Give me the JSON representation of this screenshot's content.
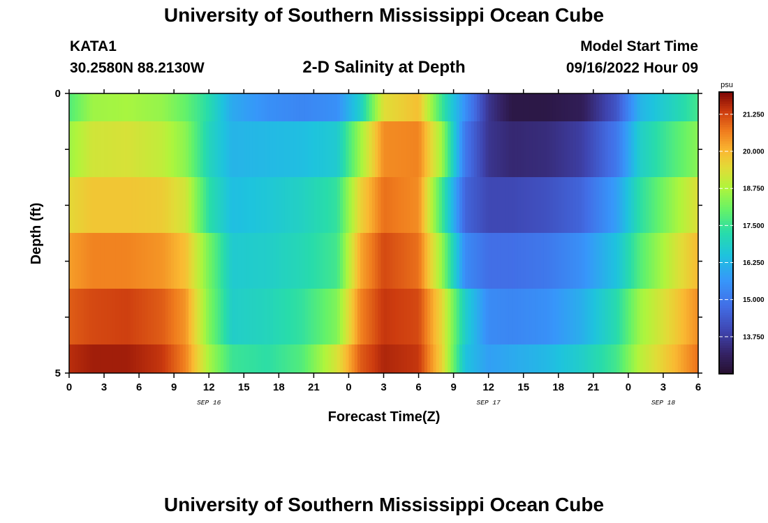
{
  "header": {
    "title": "University of Southern Mississippi Ocean Cube",
    "station": "KATA1",
    "coords": "30.2580N  88.2130W",
    "subtitle": "2-D Salinity at Depth",
    "model_label": "Model Start Time",
    "model_time": "09/16/2022 Hour 09"
  },
  "footer": {
    "title": "University of Southern Mississippi Ocean Cube"
  },
  "chart_data": {
    "type": "heatmap",
    "title": "2-D Salinity at Depth",
    "xlabel": "Forecast Time(Z)",
    "ylabel": "Depth (ft)",
    "x_tick_labels": [
      "0",
      "3",
      "6",
      "9",
      "12",
      "15",
      "18",
      "21",
      "0",
      "3",
      "6",
      "9",
      "12",
      "15",
      "18",
      "21",
      "0",
      "3",
      "6"
    ],
    "x_hours": [
      0,
      3,
      6,
      9,
      12,
      15,
      18,
      21,
      24,
      27,
      30,
      33,
      36,
      39,
      42,
      45,
      48,
      51,
      54
    ],
    "date_labels": [
      {
        "text": "SEP 16",
        "hour": 12
      },
      {
        "text": "SEP 17",
        "hour": 36
      },
      {
        "text": "SEP 18",
        "hour": 51
      }
    ],
    "xlim": [
      0,
      54
    ],
    "y_tick_labels": [
      "0",
      "5"
    ],
    "ylim": [
      0,
      5
    ],
    "depth_layers": [
      0,
      1,
      2,
      3,
      4,
      5
    ],
    "colorbar": {
      "unit": "psu",
      "range": [
        12.5,
        22.0
      ],
      "tick_values": [
        21.25,
        20.0,
        18.75,
        17.5,
        16.25,
        15.0,
        13.75
      ],
      "tick_labels": [
        "21.250",
        "20.000",
        "18.750",
        "17.500",
        "16.250",
        "15.000",
        "13.750"
      ]
    },
    "salinity_keyframes_hours": [
      0,
      2,
      5,
      8,
      10,
      12,
      14,
      17,
      20,
      23,
      25,
      27,
      30,
      32,
      34,
      36,
      38,
      41,
      44,
      47,
      49,
      52,
      54
    ],
    "salinity_by_depth": [
      {
        "depth": 0,
        "values": [
          17.8,
          18.6,
          18.7,
          18.5,
          18.0,
          17.2,
          16.0,
          15.5,
          15.3,
          15.5,
          16.8,
          19.4,
          19.9,
          17.5,
          15.5,
          13.6,
          12.8,
          12.8,
          13.0,
          14.3,
          16.2,
          17.0,
          17.6
        ]
      },
      {
        "depth": 1,
        "values": [
          18.6,
          19.2,
          19.3,
          19.0,
          18.4,
          17.0,
          16.2,
          16.3,
          16.4,
          16.7,
          18.6,
          20.5,
          20.6,
          18.6,
          15.0,
          13.6,
          13.3,
          13.4,
          13.8,
          15.0,
          16.8,
          17.8,
          18.4
        ]
      },
      {
        "depth": 2,
        "values": [
          19.5,
          19.8,
          19.8,
          19.7,
          19.2,
          17.3,
          16.4,
          16.6,
          16.9,
          17.4,
          19.6,
          20.8,
          20.5,
          17.6,
          14.6,
          14.0,
          14.0,
          14.2,
          14.6,
          15.8,
          17.3,
          18.6,
          19.4
        ]
      },
      {
        "depth": 3,
        "values": [
          20.3,
          20.6,
          20.6,
          20.4,
          19.9,
          18.2,
          16.7,
          16.8,
          17.1,
          17.6,
          20.2,
          21.2,
          20.8,
          18.5,
          15.4,
          14.8,
          14.8,
          15.0,
          15.5,
          16.5,
          17.8,
          19.2,
          20.0
        ]
      },
      {
        "depth": 4,
        "values": [
          21.0,
          21.2,
          21.3,
          21.0,
          20.4,
          18.3,
          16.8,
          17.0,
          17.4,
          18.3,
          20.6,
          21.4,
          21.2,
          19.5,
          16.8,
          15.4,
          15.3,
          15.5,
          16.1,
          17.2,
          18.6,
          19.7,
          20.5
        ]
      },
      {
        "depth": 5,
        "values": [
          21.5,
          21.7,
          21.7,
          21.4,
          20.6,
          18.7,
          17.5,
          17.3,
          17.8,
          19.3,
          21.0,
          21.6,
          21.4,
          19.6,
          16.5,
          15.8,
          16.0,
          16.3,
          16.8,
          17.6,
          18.9,
          20.0,
          20.8
        ]
      }
    ]
  }
}
